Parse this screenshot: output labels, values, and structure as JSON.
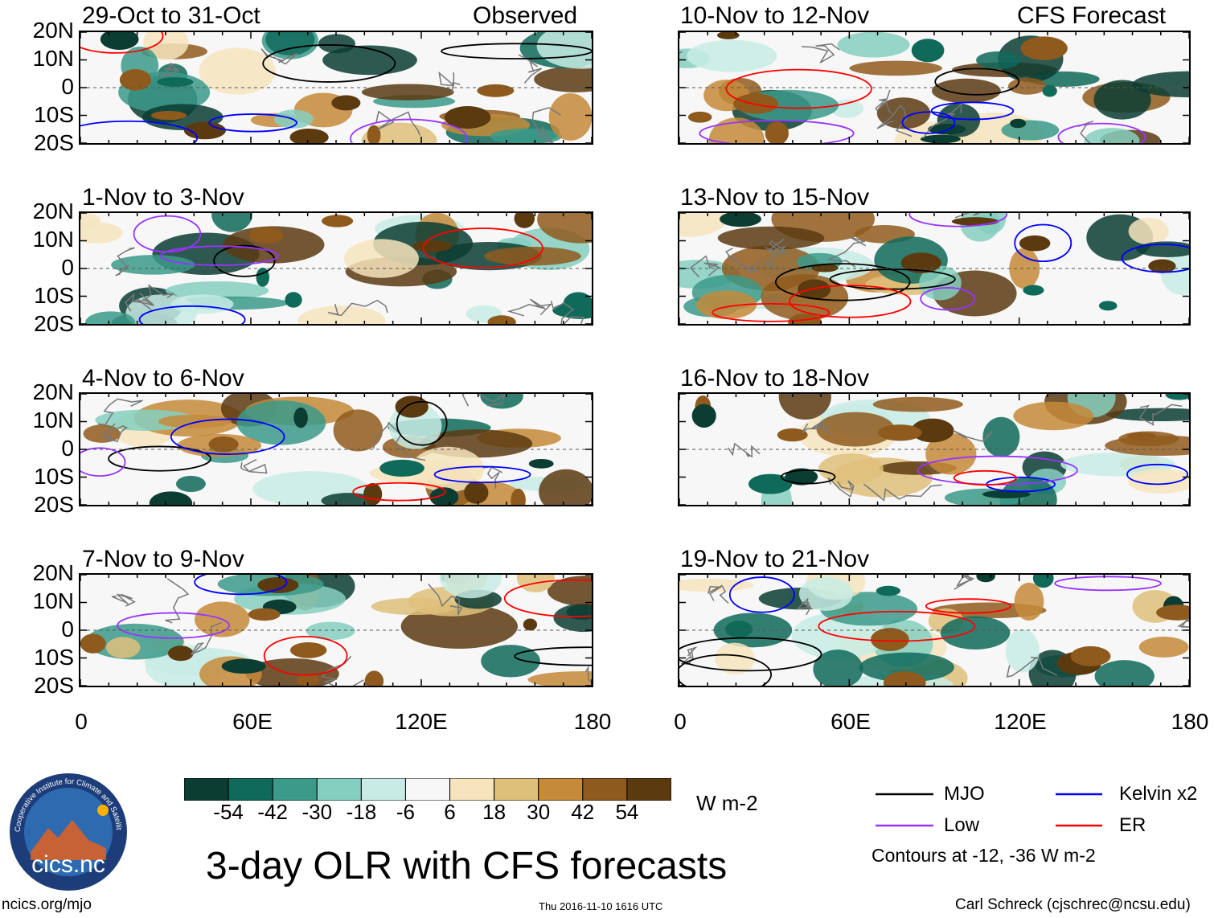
{
  "chart_data": {
    "type": "heatmap",
    "title": "3-day OLR with CFS forecasts",
    "variable": "OLR anomaly",
    "units": "W m-2",
    "columns": [
      {
        "label": "Observed",
        "panels": [
          {
            "period": "29-Oct to 31-Oct"
          },
          {
            "period": "1-Nov to 3-Nov"
          },
          {
            "period": "4-Nov to 6-Nov"
          },
          {
            "period": "7-Nov to 9-Nov"
          }
        ]
      },
      {
        "label": "CFS Forecast",
        "panels": [
          {
            "period": "10-Nov to 12-Nov"
          },
          {
            "period": "13-Nov to 15-Nov"
          },
          {
            "period": "16-Nov to 18-Nov"
          },
          {
            "period": "19-Nov to 21-Nov"
          }
        ]
      }
    ],
    "x_axis": {
      "range": [
        0,
        180
      ],
      "ticks": [
        "0",
        "60E",
        "120E",
        "180"
      ]
    },
    "y_axis": {
      "range": [
        -20,
        20
      ],
      "ticks": [
        "20N",
        "10N",
        "0",
        "10S",
        "20S"
      ]
    },
    "colorbar": {
      "levels": [
        "-54",
        "-42",
        "-30",
        "-18",
        "-6",
        "6",
        "18",
        "30",
        "42",
        "54"
      ],
      "colors": [
        "#0b3d33",
        "#0f6a5a",
        "#3b9a8a",
        "#85cfc0",
        "#c8ece5",
        "#f7f7f7",
        "#f6e4bd",
        "#dfc07a",
        "#c58a3a",
        "#8f5a1d",
        "#5c3a10"
      ]
    },
    "legend": [
      {
        "label": "MJO",
        "color": "#000000"
      },
      {
        "label": "Kelvin x2",
        "color": "#0000ff"
      },
      {
        "label": "Low",
        "color": "#9933ff"
      },
      {
        "label": "ER",
        "color": "#ff0000"
      }
    ],
    "contour_note": "Contours at -12, -36 W m-2"
  },
  "logo": {
    "text": "cics.nc",
    "ring_text": "Cooperative Institute for Climate and Satellites"
  },
  "footer": {
    "left": "ncics.org/mjo",
    "center": "Thu 2016-11-10 1616 UTC",
    "right": "Carl Schreck (cjschrec@ncsu.edu)"
  }
}
